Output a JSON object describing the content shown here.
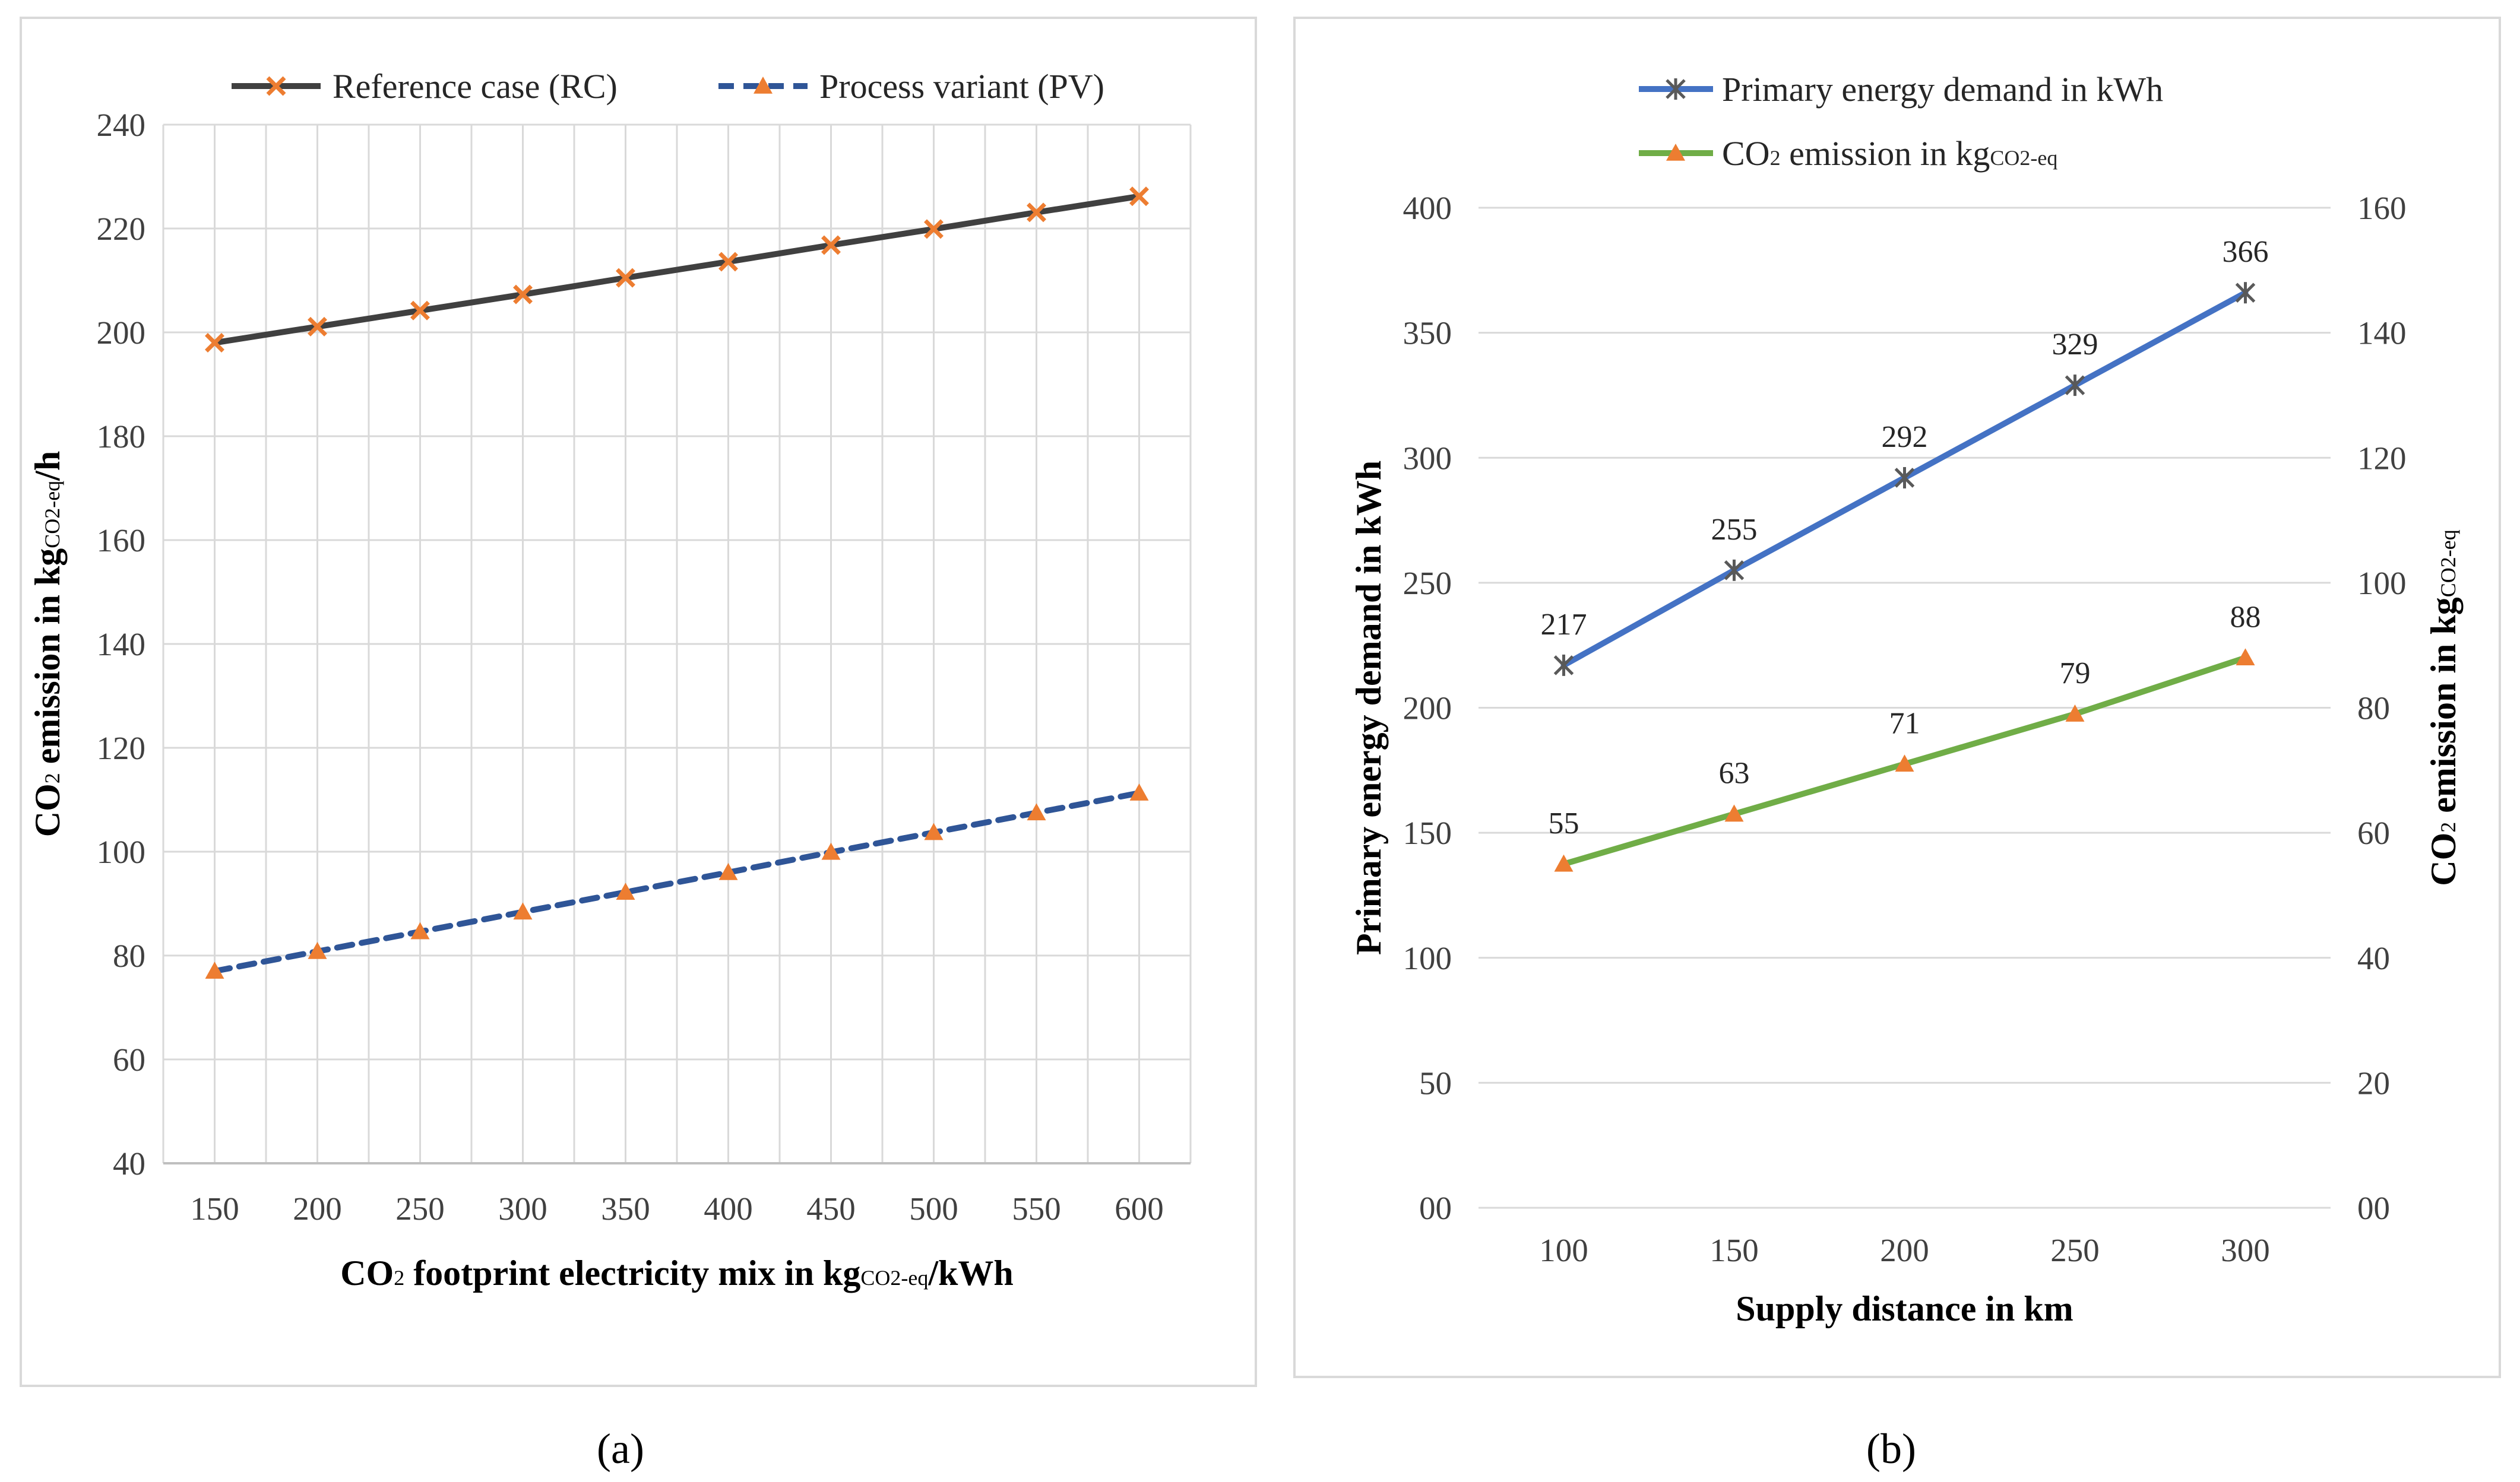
{
  "chart_data": [
    {
      "type": "line",
      "panel_label": "(a)",
      "categories": [
        "150",
        "200",
        "250",
        "300",
        "350",
        "400",
        "450",
        "500",
        "550",
        "600"
      ],
      "series": [
        {
          "name": "Reference case (RC)",
          "color": "#404040",
          "marker": "x",
          "marker_color": "#ed7d31",
          "values": [
            198,
            201.1,
            204.2,
            207.3,
            210.5,
            213.6,
            216.8,
            219.9,
            223.1,
            226.2
          ]
        },
        {
          "name": "Process variant (PV)",
          "color": "#2f5597",
          "dash": true,
          "marker": "triangle",
          "marker_color": "#ed7d31",
          "values": [
            77,
            80.8,
            84.6,
            88.4,
            92.2,
            96.0,
            99.9,
            103.7,
            107.5,
            111.3
          ]
        }
      ],
      "y_ticks": [
        "40",
        "60",
        "80",
        "100",
        "120",
        "140",
        "160",
        "180",
        "200",
        "220",
        "240"
      ],
      "ylim": [
        40,
        240
      ],
      "xlabel_parts": [
        "CO",
        "2",
        " footprint electricity mix in kg",
        "CO2-eq",
        "/kWh"
      ],
      "ylabel_parts": [
        "CO",
        "2",
        " emission in kg",
        "CO2-eq",
        "/h"
      ]
    },
    {
      "type": "line",
      "panel_label": "(b)",
      "categories": [
        "100",
        "150",
        "200",
        "250",
        "300"
      ],
      "series": [
        {
          "name": "Primary energy demand in kWh",
          "axis": "left",
          "color": "#4472c4",
          "marker": "star",
          "marker_color": "#595959",
          "values": [
            217,
            255,
            292,
            329,
            366
          ],
          "labels": [
            "217",
            "255",
            "292",
            "329",
            "366"
          ]
        },
        {
          "name_parts": [
            "CO",
            "2",
            " emission in kg",
            "CO2-eq"
          ],
          "axis": "right",
          "color": "#70ad47",
          "marker": "triangle",
          "marker_color": "#ed7d31",
          "values": [
            55,
            63,
            71,
            79,
            88
          ],
          "labels": [
            "55",
            "63",
            "71",
            "79",
            "88"
          ]
        }
      ],
      "y_left_ticks": [
        "00",
        "50",
        "100",
        "150",
        "200",
        "250",
        "300",
        "350",
        "400"
      ],
      "y_left_lim": [
        0,
        400
      ],
      "y_right_ticks": [
        "00",
        "20",
        "40",
        "60",
        "80",
        "100",
        "120",
        "140",
        "160"
      ],
      "y_right_lim": [
        0,
        160
      ],
      "xlabel": "Supply distance in km",
      "ylabel_left": "Primary energy demand in kWh",
      "ylabel_right_parts": [
        "CO",
        "2",
        " emission in kg",
        "CO2-eq"
      ]
    }
  ]
}
